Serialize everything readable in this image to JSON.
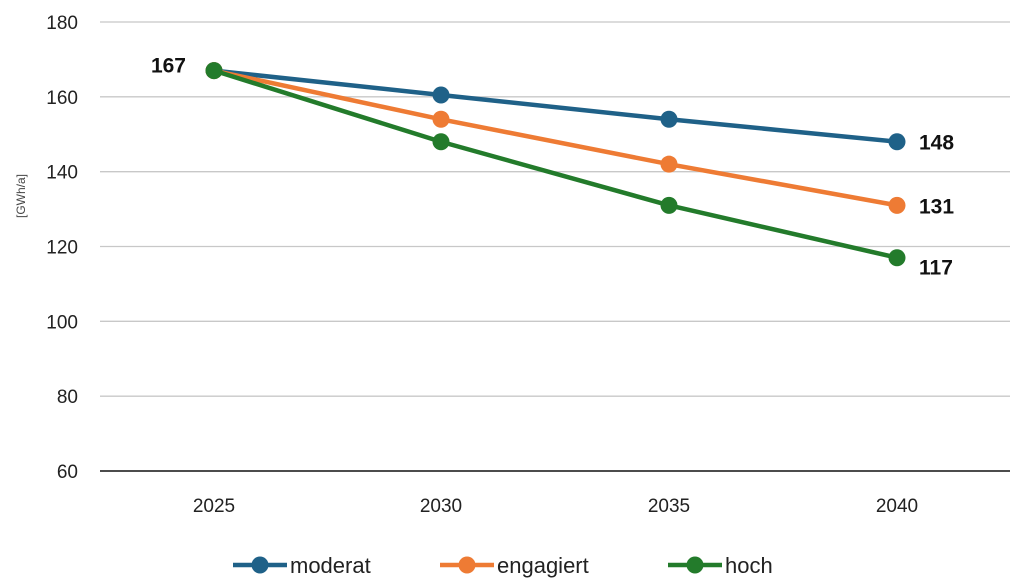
{
  "chart_data": {
    "type": "line",
    "categories": [
      "2025",
      "2030",
      "2035",
      "2040"
    ],
    "ylabel": "[GWh/a]",
    "xlabel": "",
    "ylim": [
      60,
      180
    ],
    "yticks": [
      "60",
      "80",
      "100",
      "120",
      "140",
      "160",
      "180"
    ],
    "grid": true,
    "legend_position": "bottom",
    "series": [
      {
        "name": "moderat",
        "color": "#1f6188",
        "values": [
          167,
          160.5,
          154,
          148
        ]
      },
      {
        "name": "engagiert",
        "color": "#ee7b34",
        "values": [
          167,
          154,
          142,
          131
        ]
      },
      {
        "name": "hoch",
        "color": "#237b2b",
        "values": [
          167,
          148,
          131,
          117
        ]
      }
    ],
    "data_labels": [
      {
        "text": "167",
        "series": 0,
        "index": 0
      },
      {
        "text": "148",
        "series": 0,
        "index": 3
      },
      {
        "text": "131",
        "series": 1,
        "index": 3
      },
      {
        "text": "117",
        "series": 2,
        "index": 3
      }
    ]
  }
}
